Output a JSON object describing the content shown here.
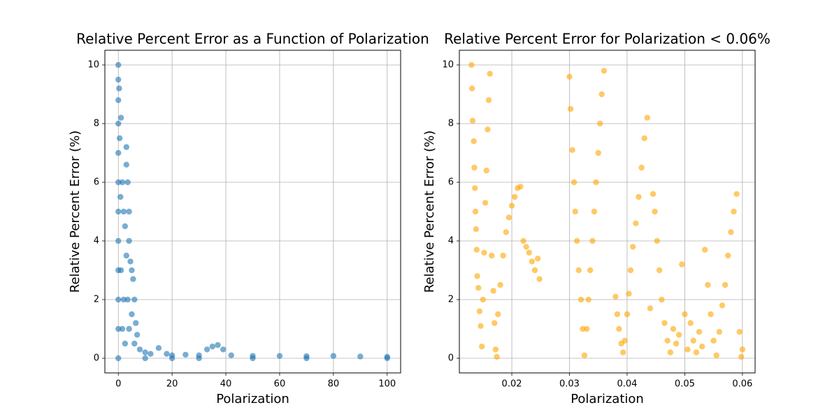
{
  "chart_data": [
    {
      "type": "scatter",
      "title": "Relative Percent Error as a Function of Polarization",
      "x_label": "Polarization",
      "y_label": "Relative Percent Error (%)",
      "color": "#1f77b4",
      "alpha": 0.6,
      "grid": true,
      "xlim": [
        -5,
        105
      ],
      "xticks": [
        0,
        20,
        40,
        60,
        80,
        100
      ],
      "ylim": [
        -0.5,
        10.5
      ],
      "yticks": [
        0,
        2,
        4,
        6,
        8,
        10
      ],
      "x": [
        0,
        0,
        0,
        0,
        0,
        0,
        0,
        0,
        0,
        0,
        0,
        0,
        0.3,
        0.5,
        0.8,
        1,
        1,
        1.5,
        1.5,
        2,
        2,
        2.5,
        2.5,
        3,
        3,
        3,
        3.5,
        3.5,
        4,
        4,
        4,
        4.5,
        5,
        5,
        5.5,
        6,
        6,
        6.5,
        7,
        8,
        10,
        12,
        15,
        18,
        20,
        25,
        30,
        33,
        35,
        37,
        39,
        42,
        50,
        60,
        70,
        80,
        90,
        100,
        100,
        50,
        20,
        10,
        70,
        30
      ],
      "values": [
        10,
        9.5,
        8.8,
        8,
        7,
        6,
        5,
        4,
        3,
        2,
        1,
        0,
        9.2,
        7.5,
        5.5,
        8.2,
        3,
        6,
        1,
        5,
        2,
        4.5,
        0.5,
        7.2,
        6.6,
        3.5,
        6,
        2,
        5,
        4,
        1,
        3.3,
        3,
        1.5,
        2.7,
        2,
        0.5,
        1.2,
        0.8,
        0.3,
        0.2,
        0.15,
        0.35,
        0.15,
        0.1,
        0.12,
        0.1,
        0.3,
        0.4,
        0.45,
        0.3,
        0.1,
        0.08,
        0.08,
        0.07,
        0.08,
        0.06,
        0.05,
        0,
        0,
        0,
        0,
        0,
        0
      ]
    },
    {
      "type": "scatter",
      "title": "Relative Percent Error for Polarization < 0.06%",
      "x_label": "Polarization",
      "y_label": "Relative Percent Error (%)",
      "color": "#ffa500",
      "alpha": 0.6,
      "grid": true,
      "xlim": [
        0.0109,
        0.0622
      ],
      "xticks": [
        0.02,
        0.03,
        0.04,
        0.05,
        0.06
      ],
      "ylim": [
        -0.5,
        10.5
      ],
      "yticks": [
        0,
        2,
        4,
        6,
        8,
        10
      ],
      "x": [
        0.013,
        0.0131,
        0.0132,
        0.0134,
        0.0135,
        0.0136,
        0.0137,
        0.0138,
        0.0139,
        0.014,
        0.0142,
        0.0144,
        0.0146,
        0.0148,
        0.015,
        0.0152,
        0.0154,
        0.0156,
        0.0158,
        0.016,
        0.0162,
        0.0165,
        0.0168,
        0.017,
        0.0172,
        0.0174,
        0.0176,
        0.018,
        0.0185,
        0.019,
        0.0195,
        0.02,
        0.0205,
        0.021,
        0.0215,
        0.022,
        0.0225,
        0.023,
        0.0235,
        0.024,
        0.0245,
        0.0248,
        0.03,
        0.0302,
        0.0305,
        0.0308,
        0.031,
        0.0313,
        0.0316,
        0.032,
        0.0323,
        0.0326,
        0.033,
        0.0333,
        0.0336,
        0.034,
        0.0343,
        0.0346,
        0.035,
        0.0353,
        0.0356,
        0.036,
        0.038,
        0.0383,
        0.0386,
        0.039,
        0.0393,
        0.0396,
        0.04,
        0.0403,
        0.0406,
        0.041,
        0.0415,
        0.042,
        0.0425,
        0.043,
        0.0435,
        0.044,
        0.0445,
        0.0448,
        0.0452,
        0.0456,
        0.046,
        0.0465,
        0.047,
        0.0475,
        0.048,
        0.0485,
        0.049,
        0.0495,
        0.05,
        0.0505,
        0.051,
        0.0515,
        0.052,
        0.0525,
        0.053,
        0.0535,
        0.054,
        0.0545,
        0.055,
        0.0555,
        0.056,
        0.0565,
        0.057,
        0.0575,
        0.058,
        0.0585,
        0.059,
        0.0595,
        0.06,
        0.0598
      ],
      "values": [
        10,
        9.2,
        8.1,
        7.4,
        6.5,
        5.8,
        5,
        4.4,
        3.7,
        2.8,
        2.4,
        1.6,
        1.1,
        0.4,
        2,
        3.6,
        5.3,
        6.4,
        7.8,
        8.8,
        9.7,
        3.5,
        2.3,
        1.2,
        0.3,
        0.05,
        1.5,
        2.5,
        3.5,
        4.3,
        4.8,
        5.2,
        5.5,
        5.8,
        5.85,
        4,
        3.8,
        3.6,
        3.3,
        3,
        3.4,
        2.7,
        9.6,
        8.5,
        7.1,
        6,
        5,
        4,
        3,
        2,
        1,
        0.1,
        1,
        2,
        3,
        4,
        5,
        6,
        7,
        8,
        9,
        9.8,
        2.1,
        1.5,
        1,
        0.5,
        0.2,
        0.6,
        1.5,
        2.2,
        3,
        3.8,
        4.6,
        5.5,
        6.5,
        7.5,
        8.2,
        1.7,
        5.6,
        5,
        4,
        3,
        2,
        1.2,
        0.6,
        0.2,
        1,
        0.5,
        0.8,
        3.2,
        1.5,
        0.3,
        1.2,
        0.6,
        0.2,
        0.9,
        0.4,
        3.7,
        2.5,
        1.5,
        0.6,
        0.1,
        0.9,
        1.8,
        2.5,
        3.5,
        4.3,
        5,
        5.6,
        0.9,
        0.3,
        0.05
      ]
    }
  ]
}
